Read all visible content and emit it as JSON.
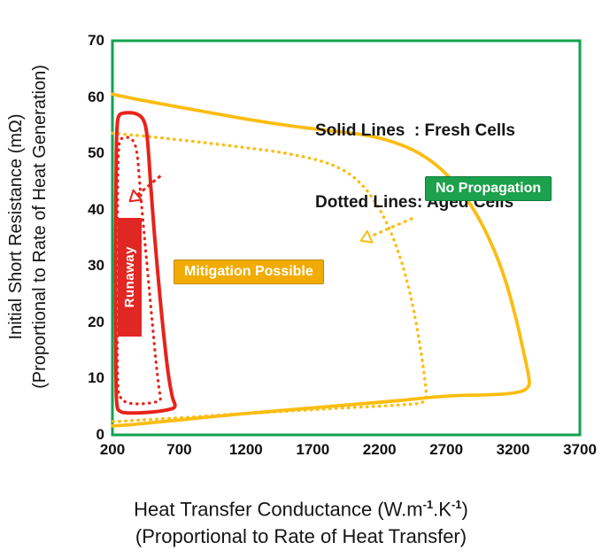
{
  "figure": {
    "ylabel_line1": "Initial Short Resistance (mΩ)",
    "ylabel_line2": "(Proportional to Rate of Heat Generation)",
    "xlabel_parts": {
      "pre": "Heat Transfer Conductance (W.m",
      "sup1": "-1",
      "mid": ".K",
      "sup2": "-1",
      "post": ")"
    },
    "xlabel_line2": "(Proportional to Rate of Heat Transfer)"
  },
  "legend": {
    "line1": "Solid Lines  : Fresh Cells",
    "line2": "Dotted Lines: Aged Cells"
  },
  "badges": {
    "no_propagation": {
      "label": "No Propagation",
      "color": "#1ca14c"
    },
    "mitigation": {
      "label": "Mitigation Possible",
      "color": "#f2ab00"
    },
    "runaway": {
      "label": "Runaway",
      "color": "#e02723"
    }
  },
  "chart_data": {
    "type": "line",
    "title": "",
    "xlabel": "Heat Transfer Conductance (W.m-1.K-1) (Proportional to Rate of Heat Transfer)",
    "ylabel": "Initial Short Resistance (mΩ) (Proportional to Rate of Heat Generation)",
    "xlim": [
      200,
      3700
    ],
    "ylim": [
      0,
      70
    ],
    "x_ticks": [
      200,
      700,
      1200,
      1700,
      2200,
      2700,
      3200,
      3700
    ],
    "y_ticks": [
      0,
      10,
      20,
      30,
      40,
      50,
      60,
      70
    ],
    "grid": false,
    "border_color": "#12a24e",
    "series": [
      {
        "name": "fresh-cells-propagation-boundary",
        "style": "solid",
        "color": "#fcbd12",
        "width": 3.8,
        "points": [
          [
            200,
            60.5
          ],
          [
            450,
            59.3
          ],
          [
            800,
            57.8
          ],
          [
            1150,
            56.3
          ],
          [
            1500,
            55.0
          ],
          [
            1800,
            54.1
          ],
          [
            2050,
            53.4
          ],
          [
            2250,
            52.4
          ],
          [
            2450,
            50.6
          ],
          [
            2620,
            48.0
          ],
          [
            2780,
            44.2
          ],
          [
            2920,
            39.4
          ],
          [
            3040,
            33.8
          ],
          [
            3140,
            27.6
          ],
          [
            3220,
            20.8
          ],
          [
            3280,
            14.6
          ],
          [
            3315,
            10.6
          ],
          [
            3318,
            8.8
          ],
          [
            3270,
            7.8
          ],
          [
            3150,
            7.3
          ],
          [
            2980,
            7.1
          ],
          [
            2800,
            7.0
          ],
          [
            2600,
            6.7
          ],
          [
            2350,
            6.1
          ],
          [
            2050,
            5.5
          ],
          [
            1750,
            4.9
          ],
          [
            1450,
            4.3
          ],
          [
            1150,
            3.7
          ],
          [
            850,
            3.0
          ],
          [
            550,
            2.3
          ],
          [
            330,
            1.8
          ],
          [
            200,
            1.6
          ]
        ]
      },
      {
        "name": "aged-cells-propagation-boundary",
        "style": "dotted",
        "color": "#fcbd12",
        "width": 3.4,
        "points": [
          [
            200,
            53.6
          ],
          [
            500,
            52.9
          ],
          [
            850,
            52.0
          ],
          [
            1200,
            51.0
          ],
          [
            1500,
            50.0
          ],
          [
            1750,
            48.7
          ],
          [
            1930,
            47.0
          ],
          [
            2060,
            44.6
          ],
          [
            2160,
            41.6
          ],
          [
            2250,
            37.8
          ],
          [
            2330,
            33.2
          ],
          [
            2400,
            27.8
          ],
          [
            2460,
            21.6
          ],
          [
            2510,
            14.8
          ],
          [
            2540,
            9.6
          ],
          [
            2548,
            6.8
          ],
          [
            2510,
            5.7
          ],
          [
            2400,
            5.4
          ],
          [
            2200,
            5.1
          ],
          [
            1950,
            4.8
          ],
          [
            1650,
            4.4
          ],
          [
            1350,
            4.0
          ],
          [
            1050,
            3.6
          ],
          [
            750,
            3.1
          ],
          [
            450,
            2.7
          ],
          [
            250,
            2.4
          ],
          [
            200,
            2.4
          ]
        ]
      },
      {
        "name": "fresh-cells-runaway-boundary",
        "style": "solid",
        "color": "#e8231a",
        "width": 4,
        "points": [
          [
            258,
            4.2
          ],
          [
            240,
            4.6
          ],
          [
            231,
            6.0
          ],
          [
            227,
            9.5
          ],
          [
            225,
            15
          ],
          [
            224,
            22
          ],
          [
            224,
            30
          ],
          [
            225,
            38
          ],
          [
            227,
            46
          ],
          [
            230,
            51.5
          ],
          [
            235,
            54.8
          ],
          [
            244,
            56.4
          ],
          [
            262,
            57.0
          ],
          [
            300,
            57.2
          ],
          [
            345,
            57.2
          ],
          [
            390,
            56.9
          ],
          [
            425,
            56.2
          ],
          [
            448,
            54.8
          ],
          [
            462,
            52.5
          ],
          [
            472,
            49.5
          ],
          [
            483,
            45.5
          ],
          [
            497,
            41.0
          ],
          [
            515,
            35.5
          ],
          [
            537,
            29.5
          ],
          [
            562,
            23.0
          ],
          [
            590,
            16.5
          ],
          [
            620,
            10.5
          ],
          [
            648,
            6.8
          ],
          [
            668,
            5.4
          ],
          [
            660,
            4.8
          ],
          [
            620,
            4.5
          ],
          [
            550,
            4.2
          ],
          [
            460,
            4.0
          ],
          [
            380,
            3.9
          ],
          [
            315,
            3.9
          ],
          [
            275,
            4.0
          ],
          [
            258,
            4.2
          ]
        ]
      },
      {
        "name": "aged-cells-runaway-boundary",
        "style": "dotted",
        "color": "#e8231a",
        "width": 3.2,
        "points": [
          [
            262,
            6.6
          ],
          [
            248,
            7.2
          ],
          [
            241,
            9.0
          ],
          [
            237,
            13
          ],
          [
            236,
            19
          ],
          [
            236,
            27
          ],
          [
            237,
            35
          ],
          [
            239,
            43
          ],
          [
            243,
            48.5
          ],
          [
            249,
            51.3
          ],
          [
            259,
            52.4
          ],
          [
            288,
            52.8
          ],
          [
            322,
            52.8
          ],
          [
            352,
            52.3
          ],
          [
            374,
            51.2
          ],
          [
            388,
            49.2
          ],
          [
            398,
            46.5
          ],
          [
            410,
            43.0
          ],
          [
            427,
            38.5
          ],
          [
            448,
            33.0
          ],
          [
            473,
            26.5
          ],
          [
            500,
            19.5
          ],
          [
            526,
            13.0
          ],
          [
            548,
            8.4
          ],
          [
            560,
            6.6
          ],
          [
            548,
            6.0
          ],
          [
            515,
            5.8
          ],
          [
            460,
            5.6
          ],
          [
            395,
            5.5
          ],
          [
            335,
            5.6
          ],
          [
            295,
            5.9
          ],
          [
            270,
            6.2
          ],
          [
            262,
            6.6
          ]
        ]
      }
    ],
    "arrows": [
      {
        "name": "runaway-aging-shift-arrow",
        "color": "#e8231a",
        "from": [
          560,
          46
        ],
        "to": [
          330,
          41.5
        ]
      },
      {
        "name": "propagation-aging-shift-arrow",
        "color": "#fcbd12",
        "from": [
          2450,
          38.5
        ],
        "to": [
          2060,
          34.5
        ]
      }
    ],
    "legend_entries": [
      {
        "style": "solid",
        "label": "Fresh Cells"
      },
      {
        "style": "dotted",
        "label": "Aged Cells"
      }
    ]
  }
}
